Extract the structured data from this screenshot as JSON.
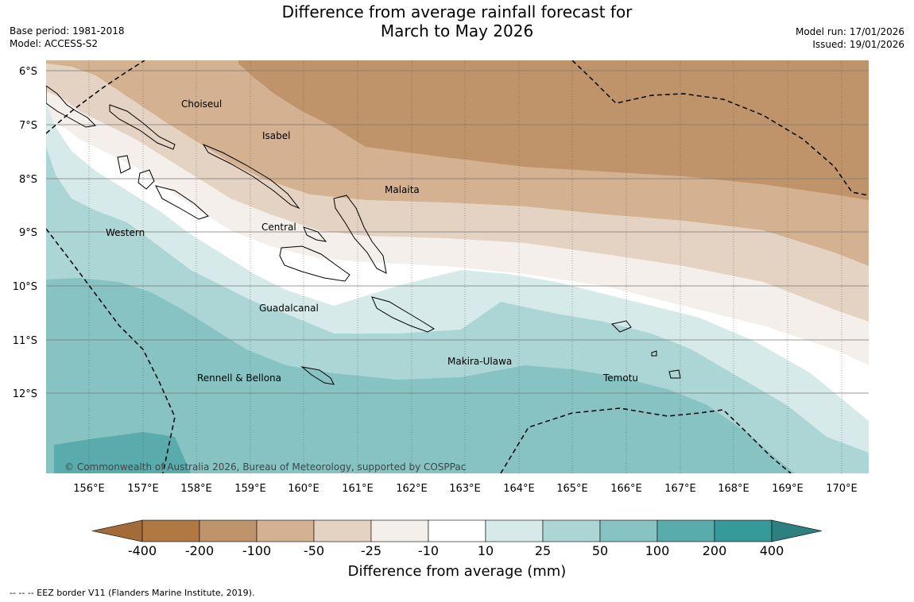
{
  "title": {
    "line1": "Difference from average rainfall forecast for",
    "line2": "March to May 2026"
  },
  "meta": {
    "base_period": "Base period: 1981-2018",
    "model": "Model: ACCESS-S2",
    "model_run": "Model run: 17/01/2026",
    "issued": "Issued: 19/01/2026"
  },
  "axes": {
    "lat_labels": [
      "6°S",
      "7°S",
      "8°S",
      "9°S",
      "10°S",
      "11°S",
      "12°S"
    ],
    "lon_labels": [
      "156°E",
      "157°E",
      "158°E",
      "159°E",
      "160°E",
      "161°E",
      "162°E",
      "163°E",
      "164°E",
      "165°E",
      "166°E",
      "167°E",
      "168°E",
      "169°E",
      "170°E"
    ]
  },
  "places": [
    "Choiseul",
    "Isabel",
    "Malaita",
    "Central",
    "Western",
    "Guadalcanal",
    "Makira-Ulawa",
    "Rennell & Bellona",
    "Temotu"
  ],
  "copyright": "© Commonwealth of Australia 2026, Bureau of Meteorology, supported by COSPPac",
  "colorbar": {
    "labels": [
      "-400",
      "-200",
      "-100",
      "-50",
      "-25",
      "-10",
      "10",
      "25",
      "50",
      "100",
      "200",
      "400"
    ],
    "colors": [
      "#a26b37",
      "#b07843",
      "#c0946a",
      "#d4b190",
      "#e4d3c2",
      "#f4efea",
      "#ffffff",
      "#d6eae9",
      "#acd5d5",
      "#87c3c3",
      "#5aabab",
      "#36999a",
      "#2d7f80"
    ],
    "title": "Difference from average (mm)"
  },
  "footer": "--  --  -- EEZ border V11 (Flanders Marine Institute, 2019)."
}
